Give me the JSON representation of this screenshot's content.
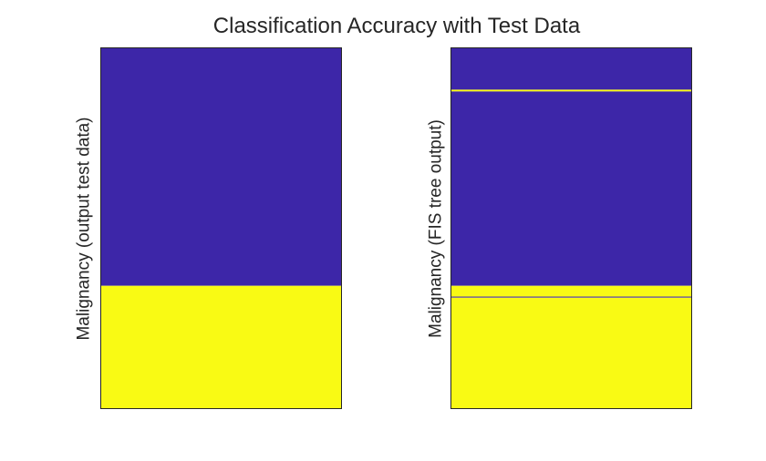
{
  "title": "Classification Accuracy with Test Data",
  "colors": {
    "class_0": "#3d26a8",
    "class_1": "#f9fa14",
    "axes": "#262626"
  },
  "chart_data": [
    {
      "type": "heatmap",
      "title": "Classification Accuracy with Test Data",
      "xlabel": "",
      "ylabel": "Malignancy (output test data)",
      "n_rows": 100,
      "row_values": [
        [
          0,
          66,
          0
        ],
        [
          66,
          100,
          1
        ]
      ],
      "grid": false,
      "legend": false
    },
    {
      "type": "heatmap",
      "title": "",
      "xlabel": "",
      "ylabel": "Malignancy (FIS tree output)",
      "n_rows": 100,
      "row_values": [
        [
          0,
          11.5,
          0
        ],
        [
          11.5,
          12,
          1
        ],
        [
          12,
          66,
          0
        ],
        [
          66,
          69,
          1
        ],
        [
          69,
          69.3,
          0
        ],
        [
          69.3,
          100,
          1
        ]
      ],
      "grid": false,
      "legend": false
    }
  ]
}
